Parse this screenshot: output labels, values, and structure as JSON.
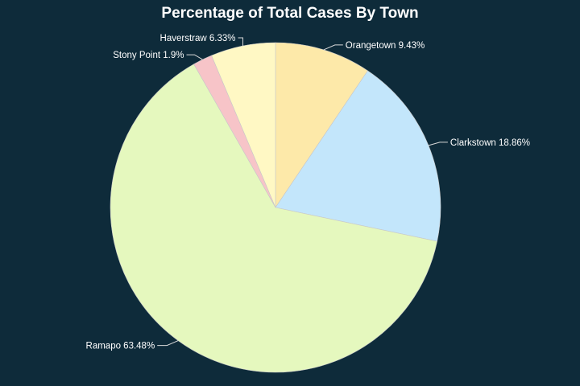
{
  "chart_data": {
    "type": "pie",
    "title": "Percentage of  Total Cases By Town",
    "slices": [
      {
        "label": "Orangetown",
        "value": 9.43,
        "label_text": "Orangetown 9.43%",
        "color": "#fde9a9"
      },
      {
        "label": "Clarkstown",
        "value": 18.86,
        "label_text": "Clarkstown 18.86%",
        "color": "#c3e6fb"
      },
      {
        "label": "Ramapo",
        "value": 63.48,
        "label_text": "Ramapo 63.48%",
        "color": "#e5f8be"
      },
      {
        "label": "Stony Point",
        "value": 1.9,
        "label_text": "Stony Point 1.9%",
        "color": "#f7c4c8"
      },
      {
        "label": "Haverstraw",
        "value": 6.33,
        "label_text": "Haverstraw 6.33%",
        "color": "#fff8c4"
      }
    ]
  }
}
